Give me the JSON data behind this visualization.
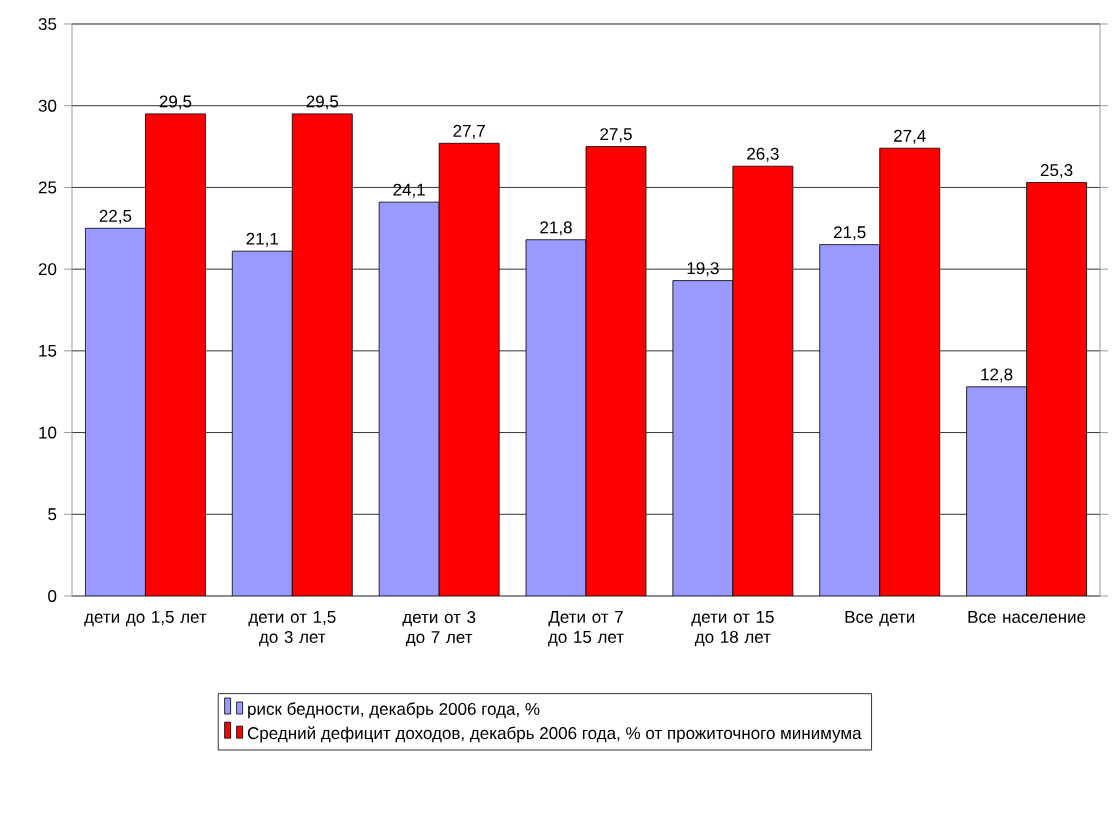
{
  "chart_data": {
    "type": "bar",
    "categories": [
      "дети до 1,5 лет",
      "дети от 1,5 до 3 лет",
      "дети от 3 до 7 лет",
      "Дети от 7 до 15 лет",
      "дети от 15 до 18 лет",
      "Все дети",
      "Все население"
    ],
    "series": [
      {
        "name": "риск бедности, декабрь 2006 года, %",
        "color": "#9999ff",
        "values": [
          22.5,
          21.1,
          24.1,
          21.8,
          19.3,
          21.5,
          12.8
        ],
        "value_labels": [
          "22,5",
          "21,1",
          "24,1",
          "21,8",
          "19,3",
          "21,5",
          "12,8"
        ]
      },
      {
        "name": "Средний дефицит доходов, декабрь 2006 года, % от прожиточного минимума",
        "color": "#ff0000",
        "values": [
          29.5,
          29.5,
          27.7,
          27.5,
          26.3,
          27.4,
          25.3
        ],
        "value_labels": [
          "29,5",
          "29,5",
          "27,7",
          "27,5",
          "26,3",
          "27,4",
          "25,3"
        ]
      }
    ],
    "ylim": [
      0,
      35
    ],
    "yticks": [
      0,
      5,
      10,
      15,
      20,
      25,
      30,
      35
    ],
    "grid": "y",
    "legend": "bottom"
  }
}
